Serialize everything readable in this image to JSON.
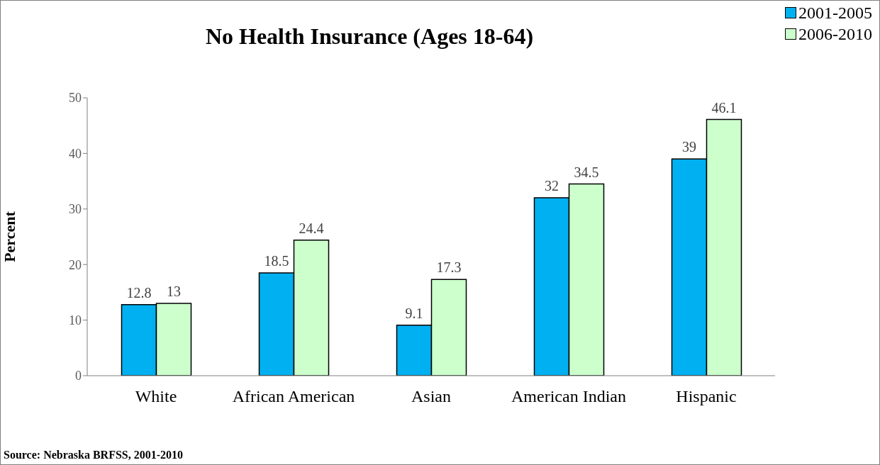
{
  "chart_data": {
    "type": "bar",
    "title": "No Health Insurance (Ages 18-64)",
    "ylabel": "Percent",
    "categories": [
      "White",
      "African American",
      "Asian",
      "American Indian",
      "Hispanic"
    ],
    "series": [
      {
        "name": "2001-2005",
        "color": "#00b0f0",
        "values": [
          12.8,
          18.5,
          9.1,
          32,
          39
        ]
      },
      {
        "name": "2006-2010",
        "color": "#ccffcc",
        "values": [
          13,
          24.4,
          17.3,
          34.5,
          46.1
        ]
      }
    ],
    "ylim": [
      0,
      50
    ],
    "yticks": [
      0,
      10,
      20,
      30,
      40,
      50
    ],
    "grid": false,
    "legend": "top right",
    "data_labels": true,
    "annotations": [
      "Source: Nebraska BRFSS, 2001-2010"
    ]
  }
}
